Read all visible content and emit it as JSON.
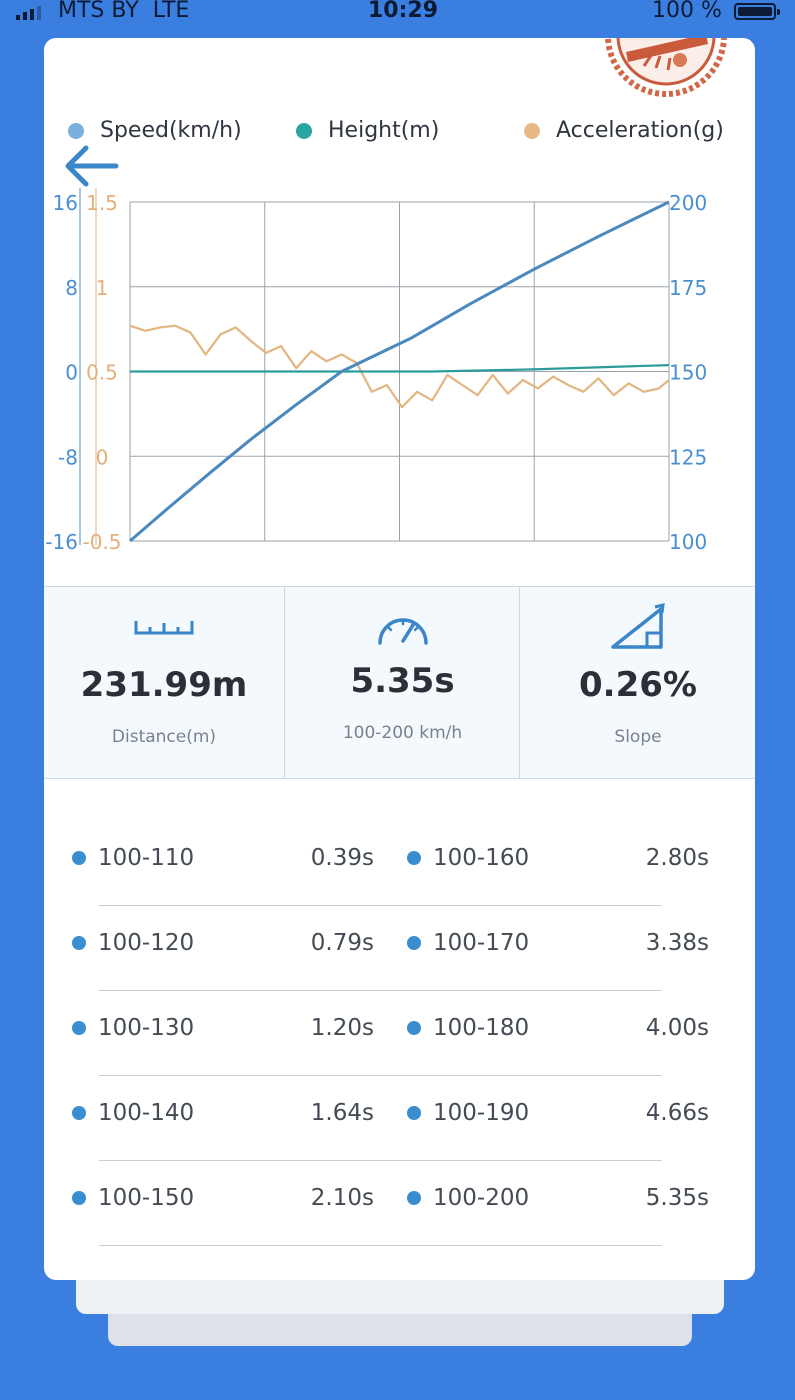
{
  "status_bar": {
    "carrier": "MTS BY",
    "network": "LTE",
    "time": "10:29",
    "battery": "100 %"
  },
  "legend": [
    {
      "label": "Speed(km/h)",
      "color": "#7aaedc"
    },
    {
      "label": "Height(m)",
      "color": "#2aa6a2"
    },
    {
      "label": "Acceleration(g)",
      "color": "#e6b882"
    }
  ],
  "chart_data": {
    "type": "line",
    "axes": {
      "height_left": {
        "ticks": [
          "16",
          "8",
          "0",
          "-8",
          "-16"
        ],
        "range": [
          -16,
          16
        ],
        "color": "#4a8fd0"
      },
      "acceleration_left": {
        "ticks": [
          "1.5",
          "1",
          "0.5",
          "0",
          "-0.5"
        ],
        "range": [
          -0.5,
          1.5
        ],
        "color": "#e3b07a"
      },
      "speed_right": {
        "ticks": [
          "200",
          "175",
          "150",
          "125",
          "100"
        ],
        "range": [
          100,
          200
        ],
        "color": "#4a8fd0"
      }
    },
    "grid": true,
    "x_range": [
      0,
      5.35
    ],
    "series": [
      {
        "name": "Speed(km/h)",
        "axis": "speed_right",
        "color": "#4a88bd",
        "x": [
          0,
          0.39,
          0.79,
          1.2,
          1.64,
          2.1,
          2.8,
          3.38,
          4.0,
          4.66,
          5.35
        ],
        "values": [
          100,
          110,
          120,
          130,
          140,
          150,
          160,
          170,
          180,
          190,
          200
        ]
      },
      {
        "name": "Height(m)",
        "axis": "height_left",
        "color": "#2a9c9a",
        "x": [
          0,
          1.0,
          2.0,
          3.0,
          4.0,
          5.35
        ],
        "values": [
          0,
          0,
          0,
          0,
          0.2,
          0.6
        ]
      },
      {
        "name": "Acceleration(g)",
        "axis": "acceleration_left",
        "color": "#e3b57f",
        "x": [
          0,
          0.15,
          0.3,
          0.45,
          0.6,
          0.75,
          0.9,
          1.05,
          1.2,
          1.35,
          1.5,
          1.65,
          1.8,
          1.95,
          2.1,
          2.25,
          2.4,
          2.55,
          2.7,
          2.85,
          3.0,
          3.15,
          3.3,
          3.45,
          3.6,
          3.75,
          3.9,
          4.05,
          4.2,
          4.35,
          4.5,
          4.65,
          4.8,
          4.95,
          5.1,
          5.25,
          5.35
        ],
        "values": [
          0.77,
          0.74,
          0.76,
          0.77,
          0.73,
          0.6,
          0.72,
          0.76,
          0.68,
          0.61,
          0.65,
          0.52,
          0.62,
          0.56,
          0.6,
          0.55,
          0.38,
          0.42,
          0.29,
          0.38,
          0.33,
          0.48,
          0.42,
          0.36,
          0.48,
          0.37,
          0.45,
          0.4,
          0.47,
          0.42,
          0.38,
          0.46,
          0.36,
          0.43,
          0.38,
          0.4,
          0.45
        ]
      }
    ]
  },
  "stats": [
    {
      "value": "231.99m",
      "label": "Distance(m)",
      "icon": "ruler-icon"
    },
    {
      "value": "5.35s",
      "label": "100-200 km/h",
      "icon": "speedometer-icon"
    },
    {
      "value": "0.26%",
      "label": "Slope",
      "icon": "slope-icon"
    }
  ],
  "splits": [
    {
      "left": {
        "range": "100-110",
        "time": "0.39s"
      },
      "right": {
        "range": "100-160",
        "time": "2.80s"
      }
    },
    {
      "left": {
        "range": "100-120",
        "time": "0.79s"
      },
      "right": {
        "range": "100-170",
        "time": "3.38s"
      }
    },
    {
      "left": {
        "range": "100-130",
        "time": "1.20s"
      },
      "right": {
        "range": "100-180",
        "time": "4.00s"
      }
    },
    {
      "left": {
        "range": "100-140",
        "time": "1.64s"
      },
      "right": {
        "range": "100-190",
        "time": "4.66s"
      }
    },
    {
      "left": {
        "range": "100-150",
        "time": "2.10s"
      },
      "right": {
        "range": "100-200",
        "time": "5.35s"
      }
    }
  ]
}
